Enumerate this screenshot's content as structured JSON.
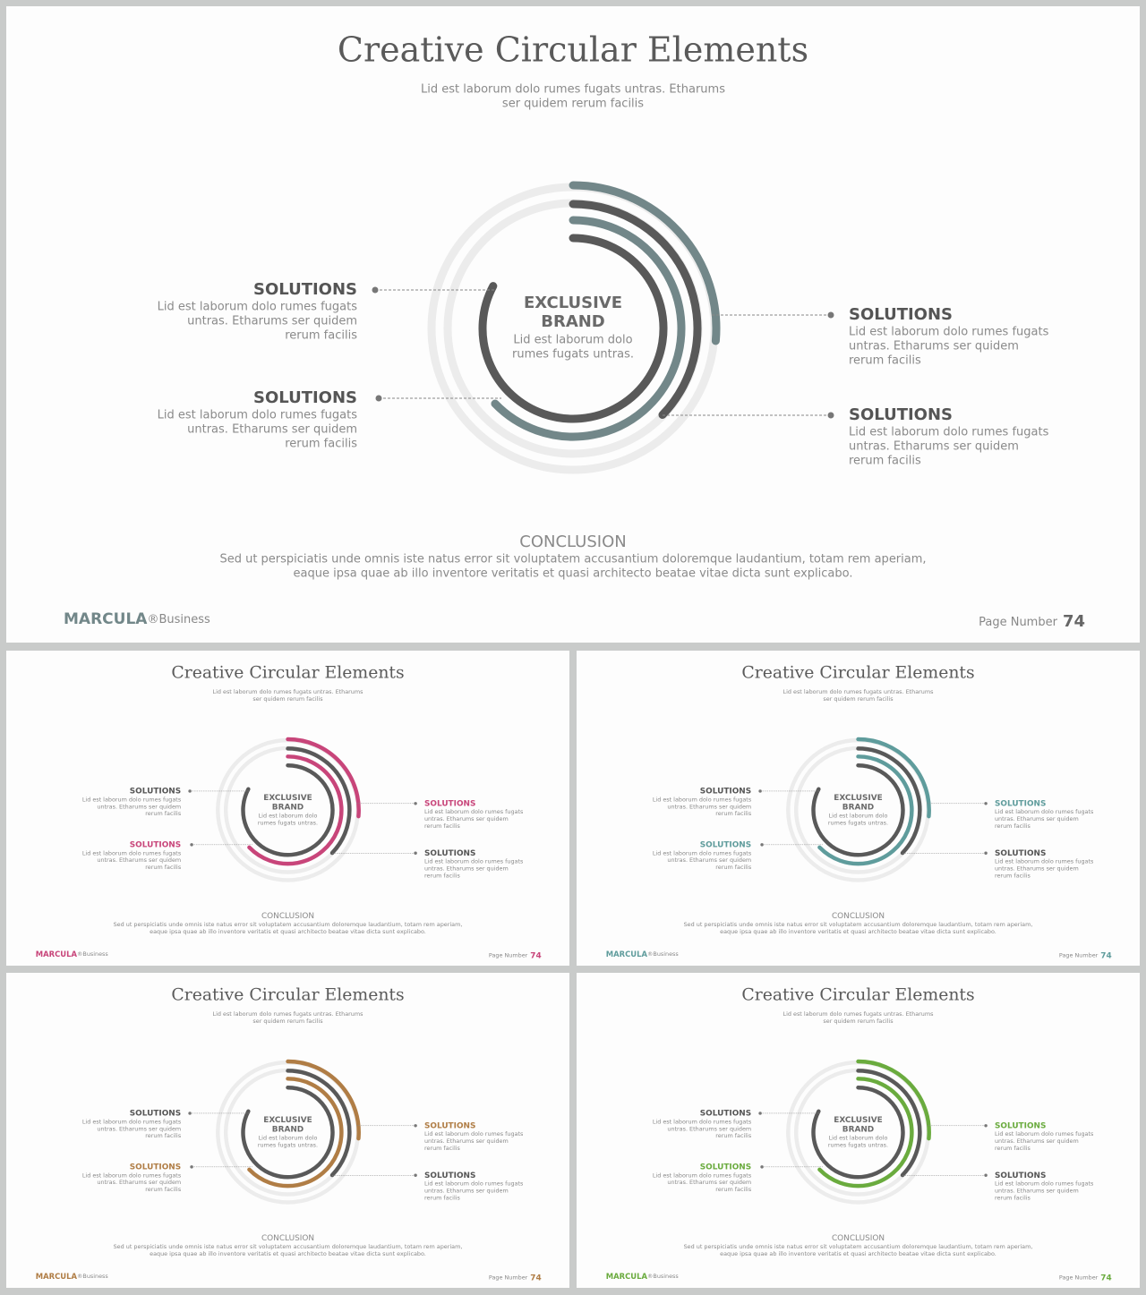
{
  "slides": [
    {
      "title": "Creative Circular Elements",
      "subtitle": [
        "Lid est laborum dolo rumes fugats untras. Etharums",
        "ser quidem rerum facilis"
      ],
      "accent": "#728789",
      "center": {
        "title": [
          "EXCLUSIVE",
          "BRAND"
        ],
        "text": [
          "Lid est laborum dolo",
          "rumes fugats untras."
        ]
      },
      "items": [
        {
          "heading": "SOLUTIONS",
          "color": "#555555",
          "text": [
            "Lid est laborum dolo rumes fugats",
            "untras. Etharums ser quidem",
            "rerum facilis"
          ]
        },
        {
          "heading": "SOLUTIONS",
          "color": "#555555",
          "text": [
            "Lid est laborum dolo rumes fugats",
            "untras. Etharums ser quidem",
            "rerum facilis"
          ]
        },
        {
          "heading": "SOLUTIONS",
          "color": "#555555",
          "text": [
            "Lid est laborum dolo rumes fugats",
            "untras. Etharums ser quidem",
            "rerum facilis"
          ]
        },
        {
          "heading": "SOLUTIONS",
          "color": "#555555",
          "text": [
            "Lid est laborum dolo rumes fugats",
            "untras. Etharums ser quidem",
            "rerum facilis"
          ]
        }
      ],
      "conclusion": {
        "title": "CONCLUSION",
        "text": [
          "Sed ut perspiciatis  unde omnis iste natus error  sit voluptatem accusantium  doloremque  laudantium,  totam rem  aperiam,",
          "eaque ipsa quae ab illo inventore veritatis et quasi architecto  beatae vitae dicta sunt explicabo."
        ]
      },
      "footer": {
        "brand": "MARCULA",
        "brand_suffix": "®Business",
        "page_label": "Page  Number",
        "page_number": 74,
        "color": "#666666"
      }
    },
    {
      "title": "Creative Circular Elements",
      "subtitle": [
        "Lid est laborum dolo rumes fugats untras. Etharums",
        "ser quidem rerum facilis"
      ],
      "accent": "#c8457a",
      "center": {
        "title": [
          "EXCLUSIVE",
          "BRAND"
        ],
        "text": [
          "Lid est laborum dolo",
          "rumes fugats untras."
        ]
      },
      "items": [
        {
          "heading": "SOLUTIONS",
          "color": "#555555",
          "text": [
            "Lid est laborum dolo rumes fugats",
            "untras. Etharums ser quidem",
            "rerum facilis"
          ]
        },
        {
          "heading": "SOLUTIONS",
          "color": "#c8457a",
          "text": [
            "Lid est laborum dolo rumes fugats",
            "untras. Etharums ser quidem",
            "rerum facilis"
          ]
        },
        {
          "heading": "SOLUTIONS",
          "color": "#c8457a",
          "text": [
            "Lid est laborum dolo rumes fugats",
            "untras. Etharums ser quidem",
            "rerum facilis"
          ]
        },
        {
          "heading": "SOLUTIONS",
          "color": "#555555",
          "text": [
            "Lid est laborum dolo rumes fugats",
            "untras. Etharums ser quidem",
            "rerum facilis"
          ]
        }
      ],
      "conclusion": {
        "title": "CONCLUSION",
        "text": [
          "Sed ut perspiciatis  unde omnis iste natus error  sit voluptatem accusantium  doloremque  laudantium,  totam rem  aperiam,",
          "eaque ipsa quae ab illo inventore veritatis et quasi architecto  beatae vitae dicta sunt explicabo."
        ]
      },
      "footer": {
        "brand": "MARCULA",
        "brand_suffix": "®Business",
        "page_label": "Page  Number",
        "page_number": 74,
        "color": "#c8457a"
      }
    },
    {
      "title": "Creative Circular Elements",
      "subtitle": [
        "Lid est laborum dolo rumes fugats untras. Etharums",
        "ser quidem rerum facilis"
      ],
      "accent": "#5f9c9c",
      "center": {
        "title": [
          "EXCLUSIVE",
          "BRAND"
        ],
        "text": [
          "Lid est laborum dolo",
          "rumes fugats untras."
        ]
      },
      "items": [
        {
          "heading": "SOLUTIONS",
          "color": "#555555",
          "text": [
            "Lid est laborum dolo rumes fugats",
            "untras. Etharums ser quidem",
            "rerum facilis"
          ]
        },
        {
          "heading": "SOLUTIONS",
          "color": "#5f9c9c",
          "text": [
            "Lid est laborum dolo rumes fugats",
            "untras. Etharums ser quidem",
            "rerum facilis"
          ]
        },
        {
          "heading": "SOLUTIONS",
          "color": "#5f9c9c",
          "text": [
            "Lid est laborum dolo rumes fugats",
            "untras. Etharums ser quidem",
            "rerum facilis"
          ]
        },
        {
          "heading": "SOLUTIONS",
          "color": "#555555",
          "text": [
            "Lid est laborum dolo rumes fugats",
            "untras. Etharums ser quidem",
            "rerum facilis"
          ]
        }
      ],
      "conclusion": {
        "title": "CONCLUSION",
        "text": [
          "Sed ut perspiciatis  unde omnis iste natus error  sit voluptatem accusantium  doloremque  laudantium,  totam rem  aperiam,",
          "eaque ipsa quae ab illo inventore veritatis et quasi architecto  beatae vitae dicta sunt explicabo."
        ]
      },
      "footer": {
        "brand": "MARCULA",
        "brand_suffix": "®Business",
        "page_label": "Page  Number",
        "page_number": 74,
        "color": "#5f9c9c"
      }
    },
    {
      "title": "Creative Circular Elements",
      "subtitle": [
        "Lid est laborum dolo rumes fugats untras. Etharums",
        "ser quidem rerum facilis"
      ],
      "accent": "#b07d45",
      "center": {
        "title": [
          "EXCLUSIVE",
          "BRAND"
        ],
        "text": [
          "Lid est laborum dolo",
          "rumes fugats untras."
        ]
      },
      "items": [
        {
          "heading": "SOLUTIONS",
          "color": "#555555",
          "text": [
            "Lid est laborum dolo rumes fugats",
            "untras. Etharums ser quidem",
            "rerum facilis"
          ]
        },
        {
          "heading": "SOLUTIONS",
          "color": "#b07d45",
          "text": [
            "Lid est laborum dolo rumes fugats",
            "untras. Etharums ser quidem",
            "rerum facilis"
          ]
        },
        {
          "heading": "SOLUTIONS",
          "color": "#b07d45",
          "text": [
            "Lid est laborum dolo rumes fugats",
            "untras. Etharums ser quidem",
            "rerum facilis"
          ]
        },
        {
          "heading": "SOLUTIONS",
          "color": "#555555",
          "text": [
            "Lid est laborum dolo rumes fugats",
            "untras. Etharums ser quidem",
            "rerum facilis"
          ]
        }
      ],
      "conclusion": {
        "title": "CONCLUSION",
        "text": [
          "Sed ut perspiciatis  unde omnis iste natus error  sit voluptatem accusantium  doloremque  laudantium,  totam rem  aperiam,",
          "eaque ipsa quae ab illo inventore veritatis et quasi architecto  beatae vitae dicta sunt explicabo."
        ]
      },
      "footer": {
        "brand": "MARCULA",
        "brand_suffix": "®Business",
        "page_label": "Page  Number",
        "page_number": 74,
        "color": "#b07d45"
      }
    },
    {
      "title": "Creative Circular Elements",
      "subtitle": [
        "Lid est laborum dolo rumes fugats untras. Etharums",
        "ser quidem rerum facilis"
      ],
      "accent": "#6aab3e",
      "center": {
        "title": [
          "EXCLUSIVE",
          "BRAND"
        ],
        "text": [
          "Lid est laborum dolo",
          "rumes fugats untras."
        ]
      },
      "items": [
        {
          "heading": "SOLUTIONS",
          "color": "#555555",
          "text": [
            "Lid est laborum dolo rumes fugats",
            "untras. Etharums ser quidem",
            "rerum facilis"
          ]
        },
        {
          "heading": "SOLUTIONS",
          "color": "#6aab3e",
          "text": [
            "Lid est laborum dolo rumes fugats",
            "untras. Etharums ser quidem",
            "rerum facilis"
          ]
        },
        {
          "heading": "SOLUTIONS",
          "color": "#6aab3e",
          "text": [
            "Lid est laborum dolo rumes fugats",
            "untras. Etharums ser quidem",
            "rerum facilis"
          ]
        },
        {
          "heading": "SOLUTIONS",
          "color": "#555555",
          "text": [
            "Lid est laborum dolo rumes fugats",
            "untras. Etharums ser quidem",
            "rerum facilis"
          ]
        }
      ],
      "conclusion": {
        "title": "CONCLUSION",
        "text": [
          "Sed ut perspiciatis  unde omnis iste natus error  sit voluptatem accusantium  doloremque  laudantium,  totam rem  aperiam,",
          "eaque ipsa quae ab illo inventore veritatis et quasi architecto  beatae vitae dicta sunt explicabo."
        ]
      },
      "footer": {
        "brand": "MARCULA",
        "brand_suffix": "®Business",
        "page_label": "Page  Number",
        "page_number": 74,
        "color": "#6aab3e"
      }
    }
  ]
}
